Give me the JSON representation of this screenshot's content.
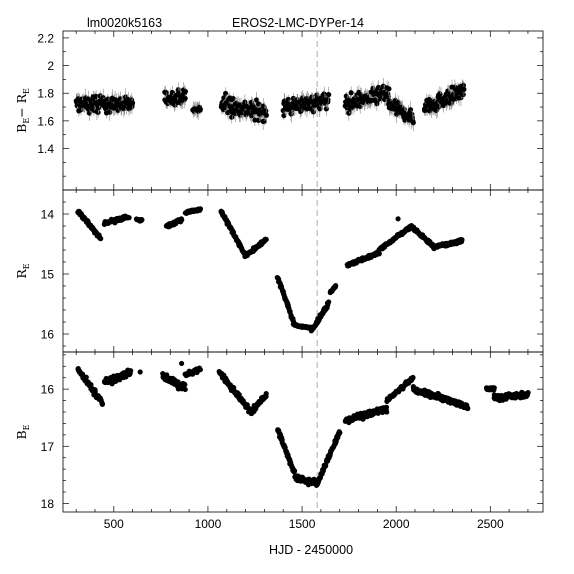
{
  "header": {
    "field_id": "lm0020k5163",
    "object_name": "EROS2-LMC-DYPer-14"
  },
  "reference_line_x": 1580,
  "chart_data": {
    "type": "scatter",
    "xlabel": "HJD - 2450000",
    "xlim": [
      230,
      2780
    ],
    "xticks": [
      500,
      1000,
      1500,
      2000,
      2500
    ],
    "panels": [
      {
        "ylabel_main": "B",
        "ylabel_sub1": "E",
        "ylabel_mid": "− R",
        "ylabel_sub2": "E",
        "ylim": [
          1.1,
          2.25
        ],
        "inverted": false,
        "yticks": [
          1.4,
          1.6,
          1.8,
          2.0,
          2.2
        ],
        "yticklabels": [
          "1.4",
          "1.6",
          "1.8",
          "2",
          "2.2"
        ],
        "errorbars": true,
        "segments": [
          {
            "x": [
              300,
              600
            ],
            "y": [
              1.72,
              1.72
            ],
            "amp": 0.07
          },
          {
            "x": [
              770,
              880
            ],
            "y": [
              1.76,
              1.78
            ],
            "amp": 0.06
          },
          {
            "x": [
              920,
              960
            ],
            "y": [
              1.68,
              1.68
            ],
            "amp": 0.03
          },
          {
            "x": [
              1070,
              1310
            ],
            "y": [
              1.72,
              1.66
            ],
            "amp": 0.08
          },
          {
            "x": [
              1400,
              1640
            ],
            "y": [
              1.7,
              1.75
            ],
            "amp": 0.07
          },
          {
            "x": [
              1730,
              1960
            ],
            "y": [
              1.72,
              1.8
            ],
            "amp": 0.07
          },
          {
            "x": [
              1960,
              2090
            ],
            "y": [
              1.72,
              1.62
            ],
            "amp": 0.06
          },
          {
            "x": [
              2150,
              2360
            ],
            "y": [
              1.7,
              1.82
            ],
            "amp": 0.07
          }
        ]
      },
      {
        "ylabel_main": "R",
        "ylabel_sub1": "E",
        "ylim": [
          16.3,
          13.6
        ],
        "inverted": true,
        "yticks": [
          14,
          15,
          16
        ],
        "yticklabels": [
          "14",
          "15",
          "16"
        ],
        "errorbars": false,
        "segments": [
          {
            "x": [
              310,
              430
            ],
            "y": [
              13.95,
              14.4
            ],
            "amp": 0.03
          },
          {
            "x": [
              450,
              580
            ],
            "y": [
              14.15,
              14.05
            ],
            "amp": 0.04
          },
          {
            "x": [
              620,
              650
            ],
            "y": [
              14.1,
              14.1
            ],
            "amp": 0.02
          },
          {
            "x": [
              780,
              860
            ],
            "y": [
              14.2,
              14.1
            ],
            "amp": 0.03
          },
          {
            "x": [
              880,
              960
            ],
            "y": [
              13.98,
              13.92
            ],
            "amp": 0.02
          },
          {
            "x": [
              1070,
              1200
            ],
            "y": [
              13.95,
              14.7
            ],
            "amp": 0.03
          },
          {
            "x": [
              1200,
              1310
            ],
            "y": [
              14.7,
              14.42
            ],
            "amp": 0.03
          },
          {
            "x": [
              1370,
              1460
            ],
            "y": [
              15.05,
              15.85
            ],
            "amp": 0.03
          },
          {
            "x": [
              1460,
              1550
            ],
            "y": [
              15.85,
              15.9
            ],
            "amp": 0.02
          },
          {
            "x": [
              1550,
              1640
            ],
            "y": [
              15.95,
              15.5
            ],
            "amp": 0.04
          },
          {
            "x": [
              1650,
              1680
            ],
            "y": [
              15.3,
              15.2
            ],
            "amp": 0.02
          },
          {
            "x": [
              1740,
              1910
            ],
            "y": [
              14.85,
              14.65
            ],
            "amp": 0.03
          },
          {
            "x": [
              1910,
              2080
            ],
            "y": [
              14.6,
              14.2
            ],
            "amp": 0.03
          },
          {
            "x": [
              2080,
              2200
            ],
            "y": [
              14.2,
              14.55
            ],
            "amp": 0.03
          },
          {
            "x": [
              2200,
              2350
            ],
            "y": [
              14.55,
              14.45
            ],
            "amp": 0.03
          }
        ],
        "points": [
          {
            "x": 2010,
            "y": 14.08
          }
        ]
      },
      {
        "ylabel_main": "B",
        "ylabel_sub1": "E",
        "ylim": [
          18.15,
          15.35
        ],
        "inverted": true,
        "yticks": [
          16,
          17,
          18
        ],
        "yticklabels": [
          "16",
          "17",
          "18"
        ],
        "errorbars": false,
        "segments": [
          {
            "x": [
              310,
              440
            ],
            "y": [
              15.65,
              16.25
            ],
            "amp": 0.06
          },
          {
            "x": [
              450,
              590
            ],
            "y": [
              15.9,
              15.7
            ],
            "amp": 0.07
          },
          {
            "x": [
              760,
              880
            ],
            "y": [
              15.8,
              15.95
            ],
            "amp": 0.09
          },
          {
            "x": [
              880,
              960
            ],
            "y": [
              15.75,
              15.65
            ],
            "amp": 0.04
          },
          {
            "x": [
              1060,
              1230
            ],
            "y": [
              15.7,
              16.4
            ],
            "amp": 0.06
          },
          {
            "x": [
              1230,
              1310
            ],
            "y": [
              16.4,
              16.1
            ],
            "amp": 0.05
          },
          {
            "x": [
              1370,
              1470
            ],
            "y": [
              16.7,
              17.55
            ],
            "amp": 0.05
          },
          {
            "x": [
              1470,
              1580
            ],
            "y": [
              17.55,
              17.65
            ],
            "amp": 0.06
          },
          {
            "x": [
              1580,
              1700
            ],
            "y": [
              17.65,
              16.75
            ],
            "amp": 0.06
          },
          {
            "x": [
              1730,
              1950
            ],
            "y": [
              16.55,
              16.35
            ],
            "amp": 0.06
          },
          {
            "x": [
              1950,
              2090
            ],
            "y": [
              16.2,
              15.8
            ],
            "amp": 0.04
          },
          {
            "x": [
              2090,
              2380
            ],
            "y": [
              16.0,
              16.3
            ],
            "amp": 0.06
          },
          {
            "x": [
              2480,
              2520
            ],
            "y": [
              16.0,
              16.0
            ],
            "amp": 0.03
          },
          {
            "x": [
              2520,
              2700
            ],
            "y": [
              16.15,
              16.1
            ],
            "amp": 0.06
          }
        ],
        "points": [
          {
            "x": 860,
            "y": 15.55
          },
          {
            "x": 640,
            "y": 15.7
          }
        ]
      }
    ]
  }
}
